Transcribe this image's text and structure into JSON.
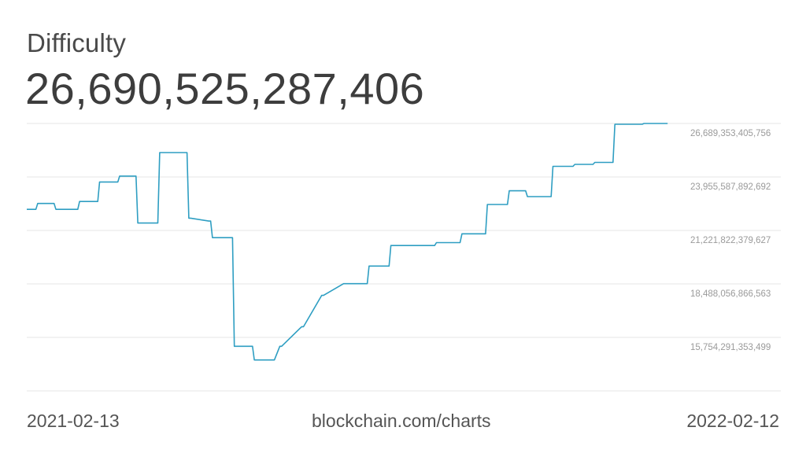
{
  "title": "Difficulty",
  "current_value": "26,690,525,287,406",
  "footer": {
    "start_date": "2021-02-13",
    "source": "blockchain.com/charts",
    "end_date": "2022-02-12"
  },
  "colors": {
    "line": "#2e9ec2",
    "grid": "#e4e4e4",
    "tick_text": "#9a9a9a"
  },
  "chart_data": {
    "type": "line",
    "title": "Difficulty",
    "xlabel": "",
    "ylabel": "",
    "xlim": [
      "2021-02-13",
      "2022-02-12"
    ],
    "ylim": [
      13020525840434,
      26689353405756
    ],
    "y_axis_position": "right",
    "grid": true,
    "y_ticks": [
      {
        "value": 26689353405756,
        "label": "26,689,353,405,756"
      },
      {
        "value": 23955587892692,
        "label": "23,955,587,892,692"
      },
      {
        "value": 21221822379627,
        "label": "21,221,822,379,627"
      },
      {
        "value": 18488056866563,
        "label": "18,488,056,866,563"
      },
      {
        "value": 15754291353499,
        "label": "15,754,291,353,499"
      }
    ],
    "series": [
      {
        "x": [
          "2021-02-13",
          "2021-02-18",
          "2021-02-19",
          "2021-02-28",
          "2021-03-01",
          "2021-03-13",
          "2021-03-14",
          "2021-03-24",
          "2021-03-25",
          "2021-04-04",
          "2021-04-05",
          "2021-04-14",
          "2021-04-15",
          "2021-04-26",
          "2021-04-27",
          "2021-05-12",
          "2021-05-13",
          "2021-05-14",
          "2021-05-24",
          "2021-05-25",
          "2021-05-26",
          "2021-06-06",
          "2021-06-07",
          "2021-06-17",
          "2021-06-18",
          "2021-06-29",
          "2021-07-02",
          "2021-07-03",
          "2021-07-14",
          "2021-07-15",
          "2021-07-25",
          "2021-07-26",
          "2021-08-06",
          "2021-08-07",
          "2021-08-08",
          "2021-08-19",
          "2021-08-20",
          "2021-08-31",
          "2021-09-01",
          "2021-09-12",
          "2021-09-13",
          "2021-09-25",
          "2021-09-26",
          "2021-10-09",
          "2021-10-10",
          "2021-10-23",
          "2021-10-24",
          "2021-11-04",
          "2021-11-05",
          "2021-11-14",
          "2021-11-15",
          "2021-11-28",
          "2021-11-29",
          "2021-12-10",
          "2021-12-11",
          "2021-12-21",
          "2021-12-22",
          "2022-01-01",
          "2022-01-02",
          "2022-01-17",
          "2022-01-18",
          "2022-01-31"
        ],
        "values": [
          22300000000000,
          22300000000000,
          22600000000000,
          22600000000000,
          22300000000000,
          22300000000000,
          22700000000000,
          22700000000000,
          23700000000000,
          23700000000000,
          24000000000000,
          24000000000000,
          21600000000000,
          21600000000000,
          25200000000000,
          25200000000000,
          21850000000000,
          21850000000000,
          21700000000000,
          21700000000000,
          20850000000000,
          20850000000000,
          15300000000000,
          15300000000000,
          14600000000000,
          14600000000000,
          15300000000000,
          15300000000000,
          16300000000000,
          16300000000000,
          17900000000000,
          17900000000000,
          18500000000000,
          18500000000000,
          18500000000000,
          18500000000000,
          19400000000000,
          19400000000000,
          20450000000000,
          20450000000000,
          20450000000000,
          20450000000000,
          20600000000000,
          20600000000000,
          21050000000000,
          21050000000000,
          22550000000000,
          22550000000000,
          23250000000000,
          23250000000000,
          22950000000000,
          22950000000000,
          24500000000000,
          24500000000000,
          24600000000000,
          24600000000000,
          24700000000000,
          24700000000000,
          26650000000000,
          26650000000000,
          26690525287406,
          26690525287406
        ]
      }
    ]
  }
}
